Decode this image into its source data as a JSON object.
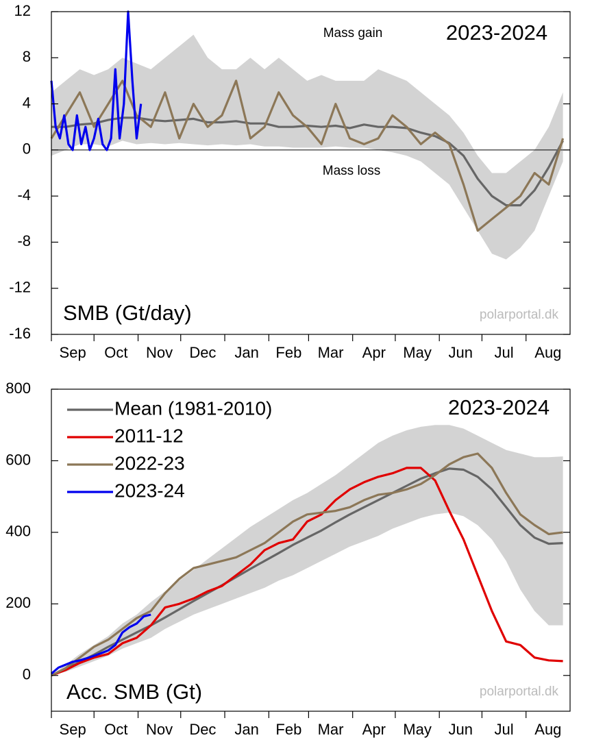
{
  "chart_data": [
    {
      "type": "line",
      "title": "2023-2024",
      "ylabel": "SMB (Gt/day)",
      "annotations": [
        "Mass gain",
        "Mass loss"
      ],
      "source": "polarportal.dk",
      "xlim": [
        0,
        365
      ],
      "xticks": [
        0,
        30,
        61,
        91,
        122,
        153,
        181,
        212,
        242,
        273,
        303,
        334
      ],
      "categories": [
        "Sep",
        "Oct",
        "Nov",
        "Dec",
        "Jan",
        "Feb",
        "Mar",
        "Apr",
        "May",
        "Jun",
        "Jul",
        "Aug"
      ],
      "ylim": [
        -16,
        12
      ],
      "yticks": [
        -16,
        -12,
        -8,
        -4,
        0,
        4,
        8,
        12
      ],
      "zero_line": true,
      "x": [
        0,
        10,
        20,
        30,
        40,
        50,
        60,
        70,
        80,
        90,
        100,
        110,
        120,
        130,
        140,
        150,
        160,
        170,
        180,
        190,
        200,
        210,
        220,
        230,
        240,
        250,
        260,
        270,
        280,
        290,
        300,
        310,
        320,
        330,
        340,
        350,
        360
      ],
      "range": {
        "color": "#d3d3d3",
        "lower": [
          -0.5,
          0,
          0.5,
          0.5,
          0.3,
          0.8,
          0.5,
          0.6,
          0.5,
          0.6,
          0.5,
          0.4,
          0.5,
          0.4,
          0.5,
          0.3,
          0.3,
          0.2,
          0.2,
          0.2,
          0.3,
          0.2,
          0.2,
          0,
          -0.2,
          -0.5,
          -1,
          -2,
          -3,
          -5,
          -7,
          -9,
          -9.5,
          -8.5,
          -7,
          -4,
          -1
        ],
        "upper": [
          5,
          6,
          7,
          6.5,
          7,
          8,
          7.5,
          7,
          8,
          9,
          10,
          8,
          7,
          7,
          8,
          7,
          8,
          7,
          6,
          6.5,
          6,
          6,
          6,
          7,
          6.5,
          6,
          5,
          4,
          3,
          1.5,
          -0.5,
          -2,
          -2,
          -1,
          0,
          2,
          5
        ]
      },
      "series": [
        {
          "color": "#666666",
          "values": [
            2,
            2,
            2.2,
            2.3,
            2.6,
            2.8,
            2.8,
            2.6,
            2.5,
            2.6,
            2.7,
            2.4,
            2.4,
            2.5,
            2.3,
            2.3,
            2.0,
            2.0,
            2.1,
            2.0,
            2.1,
            1.9,
            2.2,
            2.0,
            2.0,
            1.9,
            1.5,
            1.2,
            0.6,
            -0.5,
            -2.5,
            -4,
            -4.8,
            -4.8,
            -3.5,
            -1.5,
            0.8
          ]
        },
        {
          "color": "#8c7757",
          "values": [
            1,
            3,
            5,
            2,
            4,
            6,
            3,
            2,
            5,
            1,
            4,
            2,
            3,
            6,
            1,
            2,
            5,
            3,
            2,
            0.5,
            4,
            1,
            0.5,
            1,
            3,
            2,
            0.5,
            1.5,
            0.5,
            -3,
            -7,
            -6,
            -5,
            -4,
            -2,
            -3,
            1
          ]
        },
        {
          "color": "#0000ee",
          "x": [
            0,
            3,
            6,
            9,
            12,
            15,
            18,
            21,
            24,
            27,
            30,
            33,
            36,
            39,
            42,
            45,
            48,
            51,
            54,
            57,
            60,
            63
          ],
          "values": [
            6,
            2,
            1,
            3,
            0.5,
            0,
            3,
            0.5,
            2,
            0,
            1,
            2.7,
            0.5,
            0,
            1,
            7,
            1,
            4,
            12,
            6,
            1,
            4
          ]
        }
      ]
    },
    {
      "type": "line",
      "title": "2023-2024",
      "ylabel": "Acc. SMB (Gt)",
      "source": "polarportal.dk",
      "legend": true,
      "xlim": [
        0,
        365
      ],
      "xticks": [
        0,
        30,
        61,
        91,
        122,
        153,
        181,
        212,
        242,
        273,
        303,
        334
      ],
      "categories": [
        "Sep",
        "Oct",
        "Nov",
        "Dec",
        "Jan",
        "Feb",
        "Mar",
        "Apr",
        "May",
        "Jun",
        "Jul",
        "Aug"
      ],
      "ylim": [
        -100,
        800
      ],
      "yticks": [
        0,
        200,
        400,
        600,
        800
      ],
      "x": [
        0,
        10,
        20,
        30,
        40,
        50,
        60,
        70,
        80,
        90,
        100,
        110,
        120,
        130,
        140,
        150,
        160,
        170,
        180,
        190,
        200,
        210,
        220,
        230,
        240,
        250,
        260,
        270,
        280,
        290,
        300,
        310,
        320,
        330,
        340,
        350,
        360
      ],
      "range": {
        "color": "#d3d3d3",
        "lower": [
          0,
          10,
          25,
          40,
          55,
          75,
          90,
          105,
          130,
          150,
          170,
          185,
          200,
          215,
          230,
          245,
          265,
          280,
          300,
          320,
          340,
          360,
          375,
          390,
          410,
          425,
          440,
          450,
          455,
          445,
          420,
          380,
          320,
          240,
          180,
          140,
          140
        ],
        "upper": [
          0,
          30,
          60,
          85,
          110,
          145,
          170,
          205,
          235,
          265,
          295,
          325,
          355,
          385,
          415,
          440,
          465,
          490,
          510,
          535,
          560,
          590,
          620,
          650,
          670,
          685,
          695,
          700,
          700,
          690,
          670,
          650,
          630,
          620,
          610,
          610,
          612
        ]
      },
      "series": [
        {
          "name": "Mean (1981-2010)",
          "color": "#666666",
          "values": [
            0,
            18,
            38,
            58,
            80,
            100,
            120,
            140,
            162,
            185,
            208,
            230,
            252,
            275,
            298,
            320,
            342,
            365,
            385,
            405,
            428,
            450,
            470,
            490,
            510,
            530,
            550,
            565,
            578,
            575,
            555,
            520,
            470,
            420,
            385,
            368,
            370
          ]
        },
        {
          "name": "2011-12",
          "color": "#e00000",
          "values": [
            0,
            15,
            35,
            50,
            60,
            90,
            105,
            140,
            190,
            200,
            215,
            235,
            250,
            280,
            310,
            350,
            370,
            380,
            430,
            450,
            490,
            520,
            540,
            555,
            565,
            580,
            580,
            545,
            460,
            380,
            280,
            180,
            95,
            85,
            50,
            42,
            40
          ]
        },
        {
          "name": "2022-23",
          "color": "#8c7757",
          "values": [
            0,
            20,
            50,
            80,
            100,
            130,
            160,
            180,
            230,
            270,
            300,
            310,
            320,
            330,
            350,
            370,
            400,
            430,
            450,
            455,
            460,
            470,
            490,
            505,
            510,
            520,
            535,
            560,
            590,
            610,
            620,
            580,
            510,
            450,
            420,
            395,
            400
          ]
        },
        {
          "name": "2023-24",
          "color": "#0000ee",
          "x": [
            0,
            5,
            10,
            15,
            20,
            25,
            30,
            35,
            40,
            45,
            50,
            55,
            60,
            65,
            70
          ],
          "values": [
            5,
            22,
            30,
            38,
            42,
            48,
            55,
            62,
            70,
            85,
            120,
            135,
            145,
            165,
            170
          ]
        }
      ]
    }
  ]
}
